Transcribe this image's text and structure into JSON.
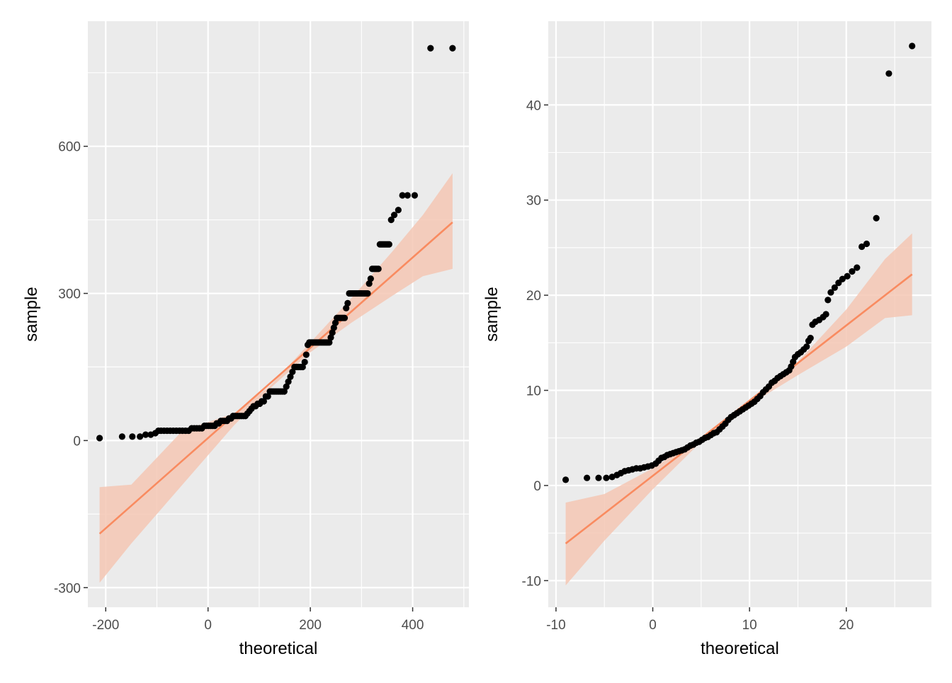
{
  "chart_data": [
    {
      "type": "scatter",
      "subtype": "qq-plot",
      "title": "",
      "xlabel": "theoretical",
      "ylabel": "sample",
      "xlim": [
        -235,
        510
      ],
      "ylim": [
        -340,
        855
      ],
      "xticks": [
        -200,
        0,
        200,
        400
      ],
      "yticks": [
        -300,
        0,
        300,
        600
      ],
      "xtick_labels": [
        "-200",
        "0",
        "200",
        "400"
      ],
      "ytick_labels": [
        "-300",
        "0",
        "300",
        "600"
      ],
      "grid": true,
      "colors": {
        "points": "#000000",
        "line": "#f98b60",
        "band": "#f4c7b4",
        "panel": "#ebebeb",
        "grid": "#ffffff"
      },
      "points": [
        [
          -212,
          5
        ],
        [
          -168,
          8
        ],
        [
          -148,
          8
        ],
        [
          -133,
          8
        ],
        [
          -122,
          12
        ],
        [
          -112,
          12
        ],
        [
          -103,
          15
        ],
        [
          -97,
          20
        ],
        [
          -92,
          20
        ],
        [
          -86,
          20
        ],
        [
          -80,
          20
        ],
        [
          -74,
          20
        ],
        [
          -68,
          20
        ],
        [
          -62,
          20
        ],
        [
          -56,
          20
        ],
        [
          -50,
          20
        ],
        [
          -44,
          20
        ],
        [
          -38,
          20
        ],
        [
          -32,
          25
        ],
        [
          -27,
          25
        ],
        [
          -22,
          25
        ],
        [
          -17,
          25
        ],
        [
          -12,
          25
        ],
        [
          -7,
          30
        ],
        [
          -3,
          30
        ],
        [
          1,
          30
        ],
        [
          5,
          30
        ],
        [
          9,
          30
        ],
        [
          13,
          30
        ],
        [
          17,
          35
        ],
        [
          21,
          35
        ],
        [
          25,
          40
        ],
        [
          29,
          40
        ],
        [
          33,
          40
        ],
        [
          37,
          40
        ],
        [
          41,
          45
        ],
        [
          45,
          45
        ],
        [
          49,
          50
        ],
        [
          53,
          50
        ],
        [
          57,
          50
        ],
        [
          61,
          50
        ],
        [
          65,
          50
        ],
        [
          69,
          50
        ],
        [
          73,
          50
        ],
        [
          77,
          55
        ],
        [
          81,
          60
        ],
        [
          85,
          65
        ],
        [
          89,
          70
        ],
        [
          93,
          70
        ],
        [
          97,
          75
        ],
        [
          101,
          75
        ],
        [
          105,
          80
        ],
        [
          109,
          80
        ],
        [
          113,
          90
        ],
        [
          117,
          90
        ],
        [
          121,
          100
        ],
        [
          125,
          100
        ],
        [
          129,
          100
        ],
        [
          133,
          100
        ],
        [
          137,
          100
        ],
        [
          141,
          100
        ],
        [
          145,
          100
        ],
        [
          149,
          100
        ],
        [
          153,
          110
        ],
        [
          157,
          120
        ],
        [
          161,
          130
        ],
        [
          165,
          140
        ],
        [
          169,
          150
        ],
        [
          173,
          150
        ],
        [
          177,
          150
        ],
        [
          181,
          150
        ],
        [
          185,
          150
        ],
        [
          189,
          160
        ],
        [
          192,
          175
        ],
        [
          195,
          195
        ],
        [
          198,
          200
        ],
        [
          201,
          200
        ],
        [
          204,
          200
        ],
        [
          207,
          200
        ],
        [
          210,
          200
        ],
        [
          213,
          200
        ],
        [
          216,
          200
        ],
        [
          219,
          200
        ],
        [
          222,
          200
        ],
        [
          225,
          200
        ],
        [
          228,
          200
        ],
        [
          231,
          200
        ],
        [
          234,
          200
        ],
        [
          237,
          200
        ],
        [
          240,
          210
        ],
        [
          243,
          220
        ],
        [
          246,
          230
        ],
        [
          249,
          240
        ],
        [
          252,
          250
        ],
        [
          255,
          250
        ],
        [
          258,
          250
        ],
        [
          261,
          250
        ],
        [
          264,
          250
        ],
        [
          267,
          250
        ],
        [
          270,
          270
        ],
        [
          273,
          280
        ],
        [
          276,
          300
        ],
        [
          279,
          300
        ],
        [
          282,
          300
        ],
        [
          285,
          300
        ],
        [
          288,
          300
        ],
        [
          291,
          300
        ],
        [
          294,
          300
        ],
        [
          297,
          300
        ],
        [
          300,
          300
        ],
        [
          303,
          300
        ],
        [
          306,
          300
        ],
        [
          309,
          300
        ],
        [
          312,
          300
        ],
        [
          315,
          320
        ],
        [
          318,
          330
        ],
        [
          321,
          350
        ],
        [
          324,
          350
        ],
        [
          327,
          350
        ],
        [
          330,
          350
        ],
        [
          333,
          350
        ],
        [
          336,
          400
        ],
        [
          339,
          400
        ],
        [
          342,
          400
        ],
        [
          345,
          400
        ],
        [
          348,
          400
        ],
        [
          351,
          400
        ],
        [
          354,
          400
        ],
        [
          358,
          450
        ],
        [
          364,
          460
        ],
        [
          372,
          470
        ],
        [
          380,
          500
        ],
        [
          390,
          500
        ],
        [
          404,
          500
        ],
        [
          435,
          800
        ],
        [
          478,
          800
        ]
      ],
      "fit_line": [
        [
          -212,
          -190
        ],
        [
          478,
          445
        ]
      ],
      "band_lower": [
        [
          -212,
          -290
        ],
        [
          -150,
          -210
        ],
        [
          -50,
          -90
        ],
        [
          50,
          30
        ],
        [
          120,
          105
        ],
        [
          200,
          180
        ],
        [
          280,
          240
        ],
        [
          360,
          295
        ],
        [
          420,
          335
        ],
        [
          478,
          350
        ]
      ],
      "band_upper": [
        [
          -212,
          -95
        ],
        [
          -150,
          -90
        ],
        [
          -50,
          20
        ],
        [
          50,
          55
        ],
        [
          120,
          110
        ],
        [
          200,
          200
        ],
        [
          280,
          290
        ],
        [
          360,
          385
        ],
        [
          420,
          460
        ],
        [
          478,
          545
        ]
      ]
    },
    {
      "type": "scatter",
      "subtype": "qq-plot",
      "title": "",
      "xlabel": "theoretical",
      "ylabel": "sample",
      "xlim": [
        -10.8,
        28.8
      ],
      "ylim": [
        -12.8,
        48.8
      ],
      "xticks": [
        -10,
        0,
        10,
        20
      ],
      "yticks": [
        -10,
        0,
        10,
        20,
        30,
        40
      ],
      "xtick_labels": [
        "-10",
        "0",
        "10",
        "20"
      ],
      "ytick_labels": [
        "-10",
        "0",
        "10",
        "20",
        "30",
        "40"
      ],
      "grid": true,
      "colors": {
        "points": "#000000",
        "line": "#f98b60",
        "band": "#f4c7b4",
        "panel": "#ebebeb",
        "grid": "#ffffff"
      },
      "points": [
        [
          -9.0,
          0.6
        ],
        [
          -6.8,
          0.8
        ],
        [
          -5.6,
          0.8
        ],
        [
          -4.8,
          0.8
        ],
        [
          -4.2,
          0.9
        ],
        [
          -3.7,
          1.1
        ],
        [
          -3.3,
          1.3
        ],
        [
          -2.9,
          1.5
        ],
        [
          -2.5,
          1.6
        ],
        [
          -2.1,
          1.7
        ],
        [
          -1.7,
          1.8
        ],
        [
          -1.3,
          1.8
        ],
        [
          -0.9,
          1.9
        ],
        [
          -0.5,
          2.0
        ],
        [
          -0.1,
          2.1
        ],
        [
          0.3,
          2.3
        ],
        [
          0.6,
          2.6
        ],
        [
          0.9,
          2.9
        ],
        [
          1.2,
          3.0
        ],
        [
          1.5,
          3.2
        ],
        [
          1.8,
          3.3
        ],
        [
          2.1,
          3.4
        ],
        [
          2.4,
          3.5
        ],
        [
          2.7,
          3.6
        ],
        [
          3.0,
          3.7
        ],
        [
          3.3,
          3.8
        ],
        [
          3.6,
          4.0
        ],
        [
          3.9,
          4.2
        ],
        [
          4.2,
          4.3
        ],
        [
          4.5,
          4.5
        ],
        [
          4.8,
          4.6
        ],
        [
          5.1,
          4.8
        ],
        [
          5.4,
          5.0
        ],
        [
          5.7,
          5.1
        ],
        [
          6.0,
          5.3
        ],
        [
          6.3,
          5.5
        ],
        [
          6.6,
          5.6
        ],
        [
          6.9,
          5.9
        ],
        [
          7.2,
          6.2
        ],
        [
          7.5,
          6.5
        ],
        [
          7.8,
          6.9
        ],
        [
          8.1,
          7.2
        ],
        [
          8.4,
          7.4
        ],
        [
          8.7,
          7.6
        ],
        [
          9.0,
          7.8
        ],
        [
          9.3,
          8.0
        ],
        [
          9.6,
          8.2
        ],
        [
          9.9,
          8.4
        ],
        [
          10.2,
          8.6
        ],
        [
          10.5,
          8.8
        ],
        [
          10.8,
          9.1
        ],
        [
          11.1,
          9.4
        ],
        [
          11.4,
          9.8
        ],
        [
          11.7,
          10.1
        ],
        [
          12.0,
          10.4
        ],
        [
          12.3,
          10.8
        ],
        [
          12.6,
          11.0
        ],
        [
          12.9,
          11.3
        ],
        [
          13.2,
          11.5
        ],
        [
          13.5,
          11.7
        ],
        [
          13.8,
          11.9
        ],
        [
          14.1,
          12.1
        ],
        [
          14.3,
          12.5
        ],
        [
          14.5,
          13.0
        ],
        [
          14.7,
          13.5
        ],
        [
          15.0,
          13.8
        ],
        [
          15.3,
          14.0
        ],
        [
          15.6,
          14.3
        ],
        [
          15.9,
          14.6
        ],
        [
          16.1,
          15.2
        ],
        [
          16.3,
          15.5
        ],
        [
          16.5,
          16.9
        ],
        [
          16.8,
          17.2
        ],
        [
          17.2,
          17.4
        ],
        [
          17.6,
          17.7
        ],
        [
          17.9,
          18.0
        ],
        [
          18.1,
          19.5
        ],
        [
          18.4,
          20.3
        ],
        [
          18.8,
          20.8
        ],
        [
          19.2,
          21.3
        ],
        [
          19.6,
          21.7
        ],
        [
          20.1,
          22.0
        ],
        [
          20.6,
          22.5
        ],
        [
          21.1,
          22.9
        ],
        [
          21.6,
          25.1
        ],
        [
          22.1,
          25.4
        ],
        [
          23.1,
          28.1
        ],
        [
          24.4,
          43.3
        ],
        [
          26.8,
          46.2
        ]
      ],
      "fit_line": [
        [
          -9.0,
          -6.1
        ],
        [
          26.8,
          22.2
        ]
      ],
      "band_lower": [
        [
          -9.0,
          -10.5
        ],
        [
          -5,
          -5.8
        ],
        [
          0,
          -0.4
        ],
        [
          5,
          4.6
        ],
        [
          10,
          8.5
        ],
        [
          15,
          11.6
        ],
        [
          20,
          14.6
        ],
        [
          24,
          17.6
        ],
        [
          26.8,
          17.9
        ]
      ],
      "band_upper": [
        [
          -9.0,
          -1.8
        ],
        [
          -5,
          -0.9
        ],
        [
          0,
          1.8
        ],
        [
          5,
          5.1
        ],
        [
          10,
          9.0
        ],
        [
          15,
          13.0
        ],
        [
          20,
          18.5
        ],
        [
          24,
          23.8
        ],
        [
          26.8,
          26.5
        ]
      ]
    }
  ]
}
